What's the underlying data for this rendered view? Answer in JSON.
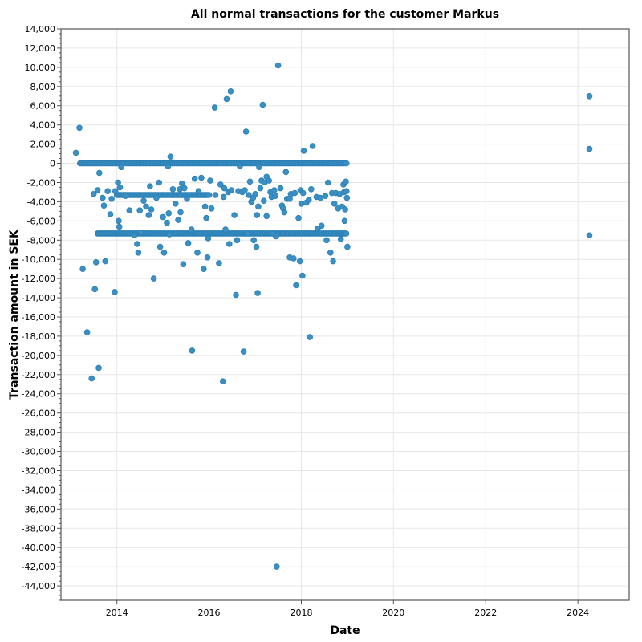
{
  "chart_data": {
    "type": "scatter",
    "title": "All normal transactions for the customer Markus",
    "xlabel": "Date",
    "ylabel": "Transaction amount in SEK",
    "xlim": [
      "2012-10-15",
      "2025-02-10"
    ],
    "ylim": [
      -45500,
      14000
    ],
    "x_ticks": [
      "2014-01-01",
      "2016-01-01",
      "2018-01-01",
      "2020-01-01",
      "2022-01-01",
      "2024-01-01"
    ],
    "x_tick_labels": [
      "2014",
      "2016",
      "2018",
      "2020",
      "2022",
      "2024"
    ],
    "y_ticks": [
      14000,
      12000,
      10000,
      8000,
      6000,
      4000,
      2000,
      0,
      -2000,
      -4000,
      -6000,
      -8000,
      -10000,
      -12000,
      -14000,
      -16000,
      -18000,
      -20000,
      -22000,
      -24000,
      -26000,
      -28000,
      -30000,
      -32000,
      -34000,
      -36000,
      -38000,
      -40000,
      -42000,
      -44000
    ],
    "y_tick_labels": [
      "14,000",
      "12,000",
      "10,000",
      "8,000",
      "6,000",
      "4,000",
      "2,000",
      "0",
      "-2,000",
      "-4,000",
      "-6,000",
      "-8,000",
      "-10,000",
      "-12,000",
      "-14,000",
      "-16,000",
      "-18,000",
      "-20,000",
      "-22,000",
      "-24,000",
      "-26,000",
      "-28,000",
      "-30,000",
      "-32,000",
      "-34,000",
      "-36,000",
      "-38,000",
      "-40,000",
      "-42,000",
      "-44,000"
    ],
    "grid": true,
    "color": "#3a8fc4",
    "bands": [
      {
        "start": "2013-03-15",
        "end": "2019-01-01",
        "step_days": 10,
        "y": 0
      },
      {
        "start": "2013-08-01",
        "end": "2019-01-01",
        "step_days": 10,
        "y": -7300
      },
      {
        "start": "2014-01-01",
        "end": "2016-01-01",
        "step_days": 10,
        "y": -3300
      }
    ],
    "points": [
      {
        "x": "2013-02-10",
        "y": 1100
      },
      {
        "x": "2013-03-10",
        "y": 3700
      },
      {
        "x": "2013-04-05",
        "y": -11000
      },
      {
        "x": "2013-05-10",
        "y": -17600
      },
      {
        "x": "2013-06-15",
        "y": -22400
      },
      {
        "x": "2013-07-10",
        "y": -13100
      },
      {
        "x": "2013-07-20",
        "y": -10300
      },
      {
        "x": "2013-08-10",
        "y": -21300
      },
      {
        "x": "2013-07-01",
        "y": -3200
      },
      {
        "x": "2013-08-01",
        "y": -2800
      },
      {
        "x": "2013-08-15",
        "y": -1000
      },
      {
        "x": "2013-09-10",
        "y": -3600
      },
      {
        "x": "2013-09-20",
        "y": -4400
      },
      {
        "x": "2013-10-01",
        "y": -10200
      },
      {
        "x": "2013-10-20",
        "y": -2900
      },
      {
        "x": "2013-11-10",
        "y": -5300
      },
      {
        "x": "2013-11-20",
        "y": -3700
      },
      {
        "x": "2013-12-15",
        "y": -13400
      },
      {
        "x": "2013-12-20",
        "y": -2900
      },
      {
        "x": "2014-01-10",
        "y": -2000
      },
      {
        "x": "2014-01-15",
        "y": -6000
      },
      {
        "x": "2014-01-20",
        "y": -6600
      },
      {
        "x": "2014-01-25",
        "y": -2500
      },
      {
        "x": "2014-02-05",
        "y": -400
      },
      {
        "x": "2014-03-10",
        "y": -3400
      },
      {
        "x": "2014-04-10",
        "y": -4900
      },
      {
        "x": "2014-05-20",
        "y": -7500
      },
      {
        "x": "2014-06-20",
        "y": -9300
      },
      {
        "x": "2014-06-10",
        "y": -8400
      },
      {
        "x": "2014-07-01",
        "y": -4900
      },
      {
        "x": "2014-07-10",
        "y": -7200
      },
      {
        "x": "2014-08-01",
        "y": -3900
      },
      {
        "x": "2014-08-20",
        "y": -4500
      },
      {
        "x": "2014-09-20",
        "y": -2400
      },
      {
        "x": "2014-09-10",
        "y": -5400
      },
      {
        "x": "2014-10-20",
        "y": -12000
      },
      {
        "x": "2014-10-01",
        "y": -4800
      },
      {
        "x": "2014-11-10",
        "y": -3600
      },
      {
        "x": "2014-12-01",
        "y": -2000
      },
      {
        "x": "2014-12-10",
        "y": -8700
      },
      {
        "x": "2015-01-10",
        "y": -9300
      },
      {
        "x": "2015-01-01",
        "y": -5600
      },
      {
        "x": "2015-02-01",
        "y": -6200
      },
      {
        "x": "2015-02-10",
        "y": -300
      },
      {
        "x": "2015-03-01",
        "y": 700
      },
      {
        "x": "2015-02-20",
        "y": -7400
      },
      {
        "x": "2015-02-15",
        "y": -5200
      },
      {
        "x": "2015-03-20",
        "y": -2700
      },
      {
        "x": "2015-04-10",
        "y": -4200
      },
      {
        "x": "2015-05-01",
        "y": -5900
      },
      {
        "x": "2015-05-15",
        "y": -2700
      },
      {
        "x": "2015-05-20",
        "y": -5100
      },
      {
        "x": "2015-06-01",
        "y": -2100
      },
      {
        "x": "2015-06-10",
        "y": -10500
      },
      {
        "x": "2015-06-20",
        "y": -2600
      },
      {
        "x": "2015-07-10",
        "y": -3700
      },
      {
        "x": "2015-07-20",
        "y": -8300
      },
      {
        "x": "2015-08-20",
        "y": -19500
      },
      {
        "x": "2015-08-15",
        "y": -6900
      },
      {
        "x": "2015-09-10",
        "y": -1600
      },
      {
        "x": "2015-10-01",
        "y": -9300
      },
      {
        "x": "2015-10-10",
        "y": -2900
      },
      {
        "x": "2015-11-01",
        "y": -1500
      },
      {
        "x": "2015-11-20",
        "y": -11000
      },
      {
        "x": "2015-12-01",
        "y": -4500
      },
      {
        "x": "2015-12-10",
        "y": -5700
      },
      {
        "x": "2015-12-20",
        "y": -9800
      },
      {
        "x": "2015-12-25",
        "y": -7800
      },
      {
        "x": "2016-01-10",
        "y": -1800
      },
      {
        "x": "2016-01-20",
        "y": -4700
      },
      {
        "x": "2016-02-15",
        "y": 5800
      },
      {
        "x": "2016-02-20",
        "y": -3300
      },
      {
        "x": "2016-03-20",
        "y": -10400
      },
      {
        "x": "2016-04-01",
        "y": -2200
      },
      {
        "x": "2016-04-20",
        "y": -22700
      },
      {
        "x": "2016-04-25",
        "y": -3500
      },
      {
        "x": "2016-05-01",
        "y": -2600
      },
      {
        "x": "2016-05-10",
        "y": -6900
      },
      {
        "x": "2016-05-20",
        "y": 6700
      },
      {
        "x": "2016-06-01",
        "y": -3000
      },
      {
        "x": "2016-06-10",
        "y": -8400
      },
      {
        "x": "2016-06-20",
        "y": 7500
      },
      {
        "x": "2016-06-25",
        "y": -2800
      },
      {
        "x": "2016-07-20",
        "y": -5400
      },
      {
        "x": "2016-08-01",
        "y": -13700
      },
      {
        "x": "2016-08-10",
        "y": -8000
      },
      {
        "x": "2016-08-20",
        "y": -2900
      },
      {
        "x": "2016-09-01",
        "y": -300
      },
      {
        "x": "2016-09-20",
        "y": -3000
      },
      {
        "x": "2016-10-01",
        "y": -19600
      },
      {
        "x": "2016-10-10",
        "y": -2800
      },
      {
        "x": "2016-10-20",
        "y": 3300
      },
      {
        "x": "2016-11-01",
        "y": -7300
      },
      {
        "x": "2016-11-10",
        "y": -3300
      },
      {
        "x": "2016-11-20",
        "y": -1900
      },
      {
        "x": "2016-12-01",
        "y": -4000
      },
      {
        "x": "2016-12-15",
        "y": -3600
      },
      {
        "x": "2016-12-20",
        "y": -8000
      },
      {
        "x": "2017-01-01",
        "y": -3200
      },
      {
        "x": "2017-01-10",
        "y": -8700
      },
      {
        "x": "2017-01-15",
        "y": -5400
      },
      {
        "x": "2017-01-20",
        "y": -13500
      },
      {
        "x": "2017-01-25",
        "y": -4500
      },
      {
        "x": "2017-02-01",
        "y": -400
      },
      {
        "x": "2017-02-10",
        "y": -2600
      },
      {
        "x": "2017-02-20",
        "y": -1800
      },
      {
        "x": "2017-03-01",
        "y": 6100
      },
      {
        "x": "2017-03-10",
        "y": -3900
      },
      {
        "x": "2017-03-15",
        "y": -2000
      },
      {
        "x": "2017-04-01",
        "y": -5500
      },
      {
        "x": "2017-04-01",
        "y": -1400
      },
      {
        "x": "2017-04-20",
        "y": -1800
      },
      {
        "x": "2017-05-01",
        "y": -3000
      },
      {
        "x": "2017-05-10",
        "y": -3500
      },
      {
        "x": "2017-05-20",
        "y": -7300
      },
      {
        "x": "2017-06-01",
        "y": -2800
      },
      {
        "x": "2017-06-10",
        "y": -3400
      },
      {
        "x": "2017-06-15",
        "y": -7600
      },
      {
        "x": "2017-06-20",
        "y": -42000
      },
      {
        "x": "2017-07-01",
        "y": 10200
      },
      {
        "x": "2017-07-20",
        "y": -2600
      },
      {
        "x": "2017-08-01",
        "y": -4400
      },
      {
        "x": "2017-08-10",
        "y": -4700
      },
      {
        "x": "2017-08-20",
        "y": -5100
      },
      {
        "x": "2017-09-01",
        "y": -900
      },
      {
        "x": "2017-09-10",
        "y": -3700
      },
      {
        "x": "2017-10-01",
        "y": -3700
      },
      {
        "x": "2017-10-10",
        "y": -3200
      },
      {
        "x": "2017-10-01",
        "y": -9800
      },
      {
        "x": "2017-11-01",
        "y": -9900
      },
      {
        "x": "2017-11-10",
        "y": -3100
      },
      {
        "x": "2017-11-20",
        "y": -12700
      },
      {
        "x": "2017-12-10",
        "y": -5700
      },
      {
        "x": "2017-12-20",
        "y": -10200
      },
      {
        "x": "2017-12-25",
        "y": -2800
      },
      {
        "x": "2018-01-01",
        "y": -4200
      },
      {
        "x": "2018-01-10",
        "y": -11700
      },
      {
        "x": "2018-01-15",
        "y": -3100
      },
      {
        "x": "2018-01-20",
        "y": 1300
      },
      {
        "x": "2018-02-10",
        "y": -4100
      },
      {
        "x": "2018-03-01",
        "y": -3800
      },
      {
        "x": "2018-03-10",
        "y": -18100
      },
      {
        "x": "2018-03-20",
        "y": -2700
      },
      {
        "x": "2018-04-01",
        "y": 1800
      },
      {
        "x": "2018-05-01",
        "y": -3500
      },
      {
        "x": "2018-05-10",
        "y": -6800
      },
      {
        "x": "2018-06-01",
        "y": -3600
      },
      {
        "x": "2018-06-10",
        "y": -6500
      },
      {
        "x": "2018-07-10",
        "y": -3400
      },
      {
        "x": "2018-07-20",
        "y": -8000
      },
      {
        "x": "2018-08-01",
        "y": -2000
      },
      {
        "x": "2018-08-20",
        "y": -9300
      },
      {
        "x": "2018-09-01",
        "y": -3100
      },
      {
        "x": "2018-09-10",
        "y": -10200
      },
      {
        "x": "2018-09-20",
        "y": -4200
      },
      {
        "x": "2018-10-01",
        "y": -3100
      },
      {
        "x": "2018-10-20",
        "y": -4700
      },
      {
        "x": "2018-11-01",
        "y": -3200
      },
      {
        "x": "2018-11-10",
        "y": -7900
      },
      {
        "x": "2018-11-20",
        "y": -4500
      },
      {
        "x": "2018-12-01",
        "y": -2200
      },
      {
        "x": "2018-12-05",
        "y": -3000
      },
      {
        "x": "2018-12-10",
        "y": -6000
      },
      {
        "x": "2018-12-15",
        "y": -4800
      },
      {
        "x": "2018-12-20",
        "y": -1900
      },
      {
        "x": "2018-12-25",
        "y": -2900
      },
      {
        "x": "2018-12-28",
        "y": -3600
      },
      {
        "x": "2019-01-01",
        "y": -8700
      },
      {
        "x": "2024-04-01",
        "y": 7000
      },
      {
        "x": "2024-04-01",
        "y": 1500
      },
      {
        "x": "2024-04-01",
        "y": -7500
      }
    ]
  }
}
